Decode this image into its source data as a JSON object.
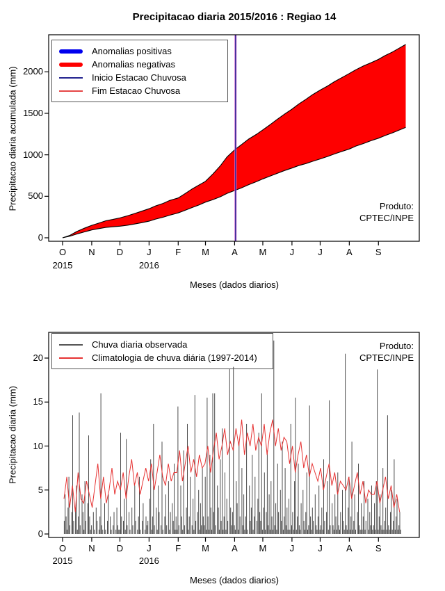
{
  "page": {
    "background": "#ffffff"
  },
  "chart_data": [
    {
      "type": "area",
      "title": "Precipitacao diaria 2015/2016 : Regiao 14",
      "xlabel": "Meses (dados diarios)",
      "ylabel": "Precipitacao diaria acumulada (mm)",
      "produto_line1": "Produto:",
      "produto_line2": "CPTEC/INPE",
      "yticks": [
        0,
        500,
        1000,
        1500,
        2000
      ],
      "ylim": [
        0,
        2450
      ],
      "x_unit": "days since 1 Oct 2015",
      "month_tick_labels": [
        "O",
        "N",
        "D",
        "J",
        "F",
        "M",
        "A",
        "M",
        "J",
        "J",
        "A",
        "S"
      ],
      "month_start_days": [
        0,
        31,
        61,
        92,
        123,
        152,
        183,
        213,
        244,
        274,
        305,
        336
      ],
      "year_labels": [
        {
          "label": "2015",
          "month_index": 0
        },
        {
          "label": "2016",
          "month_index": 3
        }
      ],
      "legend": [
        {
          "label": "Anomalias positivas",
          "color": "#0000ee",
          "style": "thick"
        },
        {
          "label": "Anomalias negativas",
          "color": "#fe0000",
          "style": "thick"
        },
        {
          "label": "Inicio Estacao Chuvosa",
          "color": "#23238f",
          "style": "thin"
        },
        {
          "label": "Fim Estacao Chuvosa",
          "color": "#e64545",
          "style": "thin"
        }
      ],
      "fill_color": "#fe0000",
      "outline_color": "#000000",
      "vlines": [
        {
          "name": "Fim Estacao Chuvosa",
          "day": 184,
          "color": "#d46ed4",
          "width": 3
        },
        {
          "name": "Inicio Estacao Chuvosa",
          "day": 184,
          "color": "#23238f",
          "width": 1.3
        }
      ],
      "series": [
        {
          "name": "Climatologia acumulada (curva superior)",
          "points": [
            [
              0,
              0
            ],
            [
              8,
              30
            ],
            [
              15,
              75
            ],
            [
              23,
              115
            ],
            [
              31,
              150
            ],
            [
              38,
              175
            ],
            [
              46,
              205
            ],
            [
              53,
              220
            ],
            [
              61,
              240
            ],
            [
              69,
              265
            ],
            [
              76,
              290
            ],
            [
              84,
              320
            ],
            [
              92,
              350
            ],
            [
              99,
              385
            ],
            [
              107,
              415
            ],
            [
              114,
              450
            ],
            [
              123,
              480
            ],
            [
              130,
              530
            ],
            [
              138,
              590
            ],
            [
              145,
              635
            ],
            [
              152,
              680
            ],
            [
              160,
              770
            ],
            [
              168,
              870
            ],
            [
              175,
              975
            ],
            [
              183,
              1060
            ],
            [
              190,
              1120
            ],
            [
              198,
              1190
            ],
            [
              206,
              1245
            ],
            [
              213,
              1300
            ],
            [
              221,
              1365
            ],
            [
              228,
              1425
            ],
            [
              236,
              1490
            ],
            [
              244,
              1550
            ],
            [
              251,
              1610
            ],
            [
              259,
              1670
            ],
            [
              266,
              1725
            ],
            [
              274,
              1780
            ],
            [
              282,
              1830
            ],
            [
              289,
              1880
            ],
            [
              297,
              1930
            ],
            [
              305,
              1980
            ],
            [
              312,
              2025
            ],
            [
              320,
              2070
            ],
            [
              328,
              2110
            ],
            [
              336,
              2150
            ],
            [
              343,
              2195
            ],
            [
              351,
              2240
            ],
            [
              358,
              2285
            ],
            [
              365,
              2330
            ]
          ]
        },
        {
          "name": "Precipitacao observada acumulada (curva inferior)",
          "points": [
            [
              0,
              0
            ],
            [
              8,
              20
            ],
            [
              15,
              45
            ],
            [
              23,
              70
            ],
            [
              31,
              95
            ],
            [
              38,
              110
            ],
            [
              46,
              125
            ],
            [
              53,
              132
            ],
            [
              61,
              140
            ],
            [
              69,
              152
            ],
            [
              76,
              165
            ],
            [
              84,
              182
            ],
            [
              92,
              200
            ],
            [
              99,
              225
            ],
            [
              107,
              248
            ],
            [
              114,
              272
            ],
            [
              123,
              300
            ],
            [
              130,
              330
            ],
            [
              138,
              365
            ],
            [
              145,
              395
            ],
            [
              152,
              430
            ],
            [
              160,
              460
            ],
            [
              168,
              495
            ],
            [
              175,
              535
            ],
            [
              183,
              570
            ],
            [
              190,
              600
            ],
            [
              198,
              640
            ],
            [
              206,
              675
            ],
            [
              213,
              710
            ],
            [
              221,
              745
            ],
            [
              228,
              775
            ],
            [
              236,
              810
            ],
            [
              244,
              840
            ],
            [
              251,
              870
            ],
            [
              259,
              895
            ],
            [
              266,
              922
            ],
            [
              274,
              950
            ],
            [
              282,
              980
            ],
            [
              289,
              1010
            ],
            [
              297,
              1040
            ],
            [
              305,
              1070
            ],
            [
              312,
              1105
            ],
            [
              320,
              1135
            ],
            [
              328,
              1170
            ],
            [
              336,
              1200
            ],
            [
              343,
              1232
            ],
            [
              351,
              1265
            ],
            [
              358,
              1298
            ],
            [
              365,
              1330
            ]
          ]
        }
      ]
    },
    {
      "type": "bar+line",
      "xlabel": "Meses (dados diarios)",
      "ylabel": "Precipitacao diaria (mm)",
      "produto_line1": "Produto:",
      "produto_line2": "CPTEC/INPE",
      "yticks": [
        0,
        5,
        10,
        15,
        20
      ],
      "ylim": [
        0,
        23
      ],
      "month_tick_labels": [
        "O",
        "N",
        "D",
        "J",
        "F",
        "M",
        "A",
        "M",
        "J",
        "J",
        "A",
        "S"
      ],
      "month_start_days": [
        0,
        31,
        61,
        92,
        123,
        152,
        183,
        213,
        244,
        274,
        305,
        336
      ],
      "year_labels": [
        {
          "label": "2015",
          "month_index": 0
        },
        {
          "label": "2016",
          "month_index": 3
        }
      ],
      "legend": [
        {
          "label": "Chuva diaria observada",
          "color": "#555555",
          "style": "thin"
        },
        {
          "label": "Climatologia de chuva diária (1997-2014)",
          "color": "#e63232",
          "style": "thin"
        }
      ],
      "bars": {
        "name": "Chuva diaria observada",
        "color": "#4d4d4d",
        "values": [
          0,
          1.5,
          4.5,
          2,
          0.5,
          3,
          6.5,
          1,
          0,
          2.5,
          13.5,
          1.5,
          0,
          3,
          5.5,
          0.5,
          2,
          13.8,
          1,
          0,
          4.5,
          2.5,
          0.5,
          6,
          1.5,
          0,
          3.5,
          11.2,
          2,
          0.5,
          1,
          0,
          2.5,
          0.5,
          0,
          3,
          1.5,
          0,
          0.5,
          2,
          16,
          1,
          0.5,
          0,
          3.5,
          0.5,
          0,
          1.5,
          4.5,
          0,
          2,
          0.5,
          0,
          1,
          2.5,
          0,
          0.5,
          3,
          1,
          0.5,
          0.5,
          11.5,
          2,
          0,
          1.5,
          4,
          0.5,
          10.8,
          1,
          0,
          2.5,
          0.5,
          0,
          3,
          1,
          0,
          5.5,
          1.5,
          0,
          0.5,
          2,
          6.5,
          0.5,
          0,
          1.5,
          3.5,
          0,
          0.5,
          2,
          1,
          1.5,
          0,
          4,
          8.5,
          0.5,
          2,
          12.5,
          1,
          0,
          3,
          0.5,
          5.5,
          2.5,
          0,
          1,
          10.5,
          0.5,
          0,
          2,
          4.5,
          1,
          0,
          6,
          0.5,
          2.5,
          0,
          3.5,
          1.5,
          8,
          0.5,
          2,
          0.5,
          14.5,
          1,
          0,
          5.5,
          2,
          0.5,
          9.5,
          1,
          0,
          3,
          12.5,
          0.5,
          2,
          6.5,
          0,
          1,
          4,
          0.5,
          15.8,
          1.5,
          0,
          2.5,
          5,
          0.5,
          3.5,
          1,
          7.5,
          2,
          1,
          6.5,
          0.5,
          15.5,
          2,
          0.5,
          9,
          3,
          0.5,
          16,
          2.5,
          16,
          1,
          0,
          5.5,
          3,
          0.5,
          8.5,
          1.5,
          12,
          0.5,
          2,
          7,
          0.5,
          4,
          1.5,
          0,
          18.8,
          3,
          1,
          2.5,
          19,
          1,
          0.5,
          6,
          3.5,
          0.5,
          10.5,
          2,
          0,
          7.5,
          1,
          4.5,
          0.5,
          2,
          12.5,
          0.5,
          0,
          5.5,
          1.5,
          3,
          9,
          0.5,
          2,
          6.5,
          0,
          1.5,
          4,
          11.5,
          2.5,
          1.5,
          16,
          0.5,
          3,
          7,
          0.5,
          2.5,
          9.5,
          1,
          4.5,
          0.5,
          6,
          2,
          0.5,
          22,
          1,
          3.5,
          0.5,
          8,
          2.5,
          0,
          5,
          1.5,
          10.5,
          0.5,
          2,
          7.5,
          1,
          3,
          0.5,
          4,
          0.5,
          12.5,
          1,
          2.5,
          0.5,
          6,
          15.5,
          0.5,
          2,
          8,
          1,
          0.5,
          3.5,
          0,
          5,
          1.5,
          0.5,
          2.5,
          7,
          0.5,
          1,
          14.6,
          2,
          0.5,
          3,
          1.5,
          0,
          4.5,
          1,
          0.5,
          2,
          5.5,
          0.5,
          1,
          3,
          0.5,
          8.5,
          1.5,
          0,
          2.5,
          6,
          0.5,
          15.2,
          1,
          0,
          3.5,
          1,
          0.5,
          4.5,
          2,
          0.5,
          7,
          1,
          0.5,
          2.5,
          0,
          5,
          1.5,
          0.5,
          20.5,
          1,
          0.5,
          3,
          6.5,
          0.5,
          2,
          10.5,
          0.5,
          1.5,
          4.5,
          0.5,
          0,
          2.5,
          8,
          1,
          0.5,
          3.5,
          0.5,
          2,
          6,
          0.5,
          1.5,
          0,
          4,
          0.5,
          2.5,
          1,
          5.5,
          0.5,
          1,
          3.5,
          0.5,
          6,
          18.7,
          0.5,
          2,
          4.5,
          1,
          0.5,
          7.5,
          0.5,
          1.5,
          3,
          0.5,
          13.5,
          1,
          0.5,
          2.5,
          5,
          0.5,
          1.5,
          8.5,
          0.5,
          2,
          4,
          0.5,
          1,
          2.5,
          0.5
        ]
      },
      "line": {
        "name": "Climatologia de chuva diária (1997-2014)",
        "color": "#e63232",
        "step_days": 3,
        "values": [
          4,
          6.5,
          3,
          5.5,
          2.5,
          7,
          4,
          3.5,
          6,
          4.5,
          3,
          5.5,
          8,
          4,
          6.5,
          3.5,
          5,
          7.5,
          4.5,
          6,
          5,
          7,
          4,
          6.5,
          8.5,
          5.5,
          7,
          4.5,
          6,
          7.5,
          6,
          8,
          5,
          7,
          9,
          6.5,
          5.5,
          8,
          6,
          7,
          7,
          9.5,
          6,
          8,
          10,
          7,
          8.5,
          6.5,
          9,
          7.5,
          8,
          10,
          7,
          9.5,
          11.5,
          8.5,
          10,
          12,
          9,
          10.5,
          9.5,
          12,
          10,
          13,
          9,
          11.5,
          10,
          12.5,
          9.5,
          11,
          10,
          12.5,
          9,
          11.5,
          13,
          10,
          12,
          9.5,
          11,
          10.5,
          8,
          10,
          7,
          9,
          10.5,
          7.5,
          9,
          6.5,
          8,
          7,
          6,
          7.5,
          5,
          6.5,
          8,
          5.5,
          7,
          4.5,
          6,
          5.5,
          5,
          6.5,
          4,
          5.5,
          7,
          4.5,
          6,
          3.5,
          5,
          4.5,
          4.5,
          6,
          3.5,
          5,
          6.5,
          4,
          5.5,
          3,
          4.5,
          2.5
        ]
      }
    }
  ]
}
